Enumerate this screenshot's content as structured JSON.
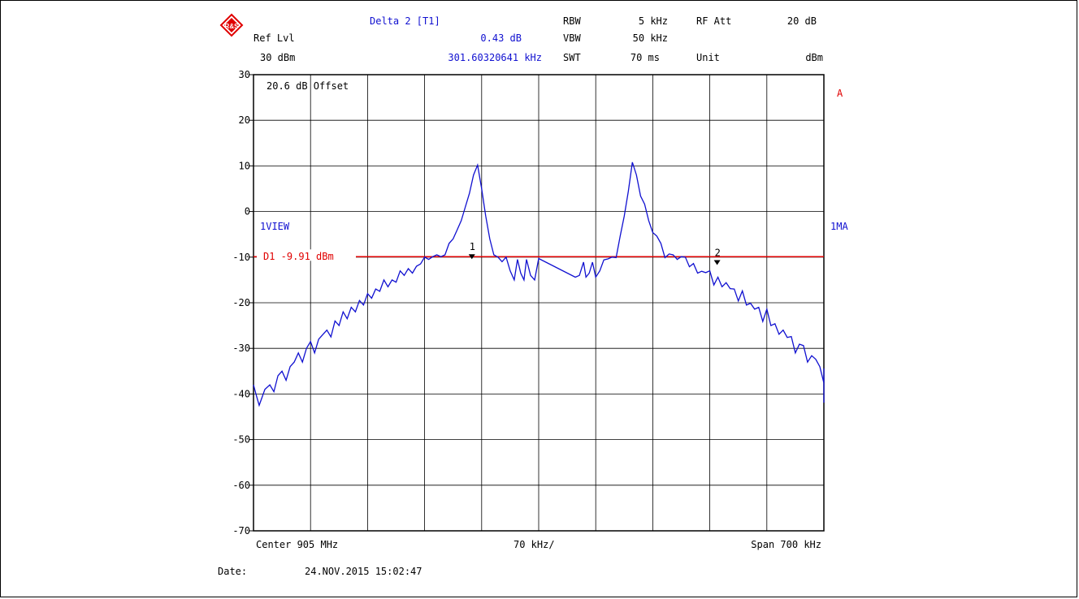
{
  "header": {
    "logo_text": "R&S",
    "ref_lvl_label": "Ref Lvl",
    "ref_lvl_value": "30 dBm",
    "marker_title": "Delta 2 [T1]",
    "marker_level": "0.43 dB",
    "marker_freq": "301.60320641 kHz",
    "rbw_label": "RBW",
    "rbw_value": "5 kHz",
    "vbw_label": "VBW",
    "vbw_value": "50 kHz",
    "swt_label": "SWT",
    "swt_value": "70 ms",
    "rf_att_label": "RF Att",
    "rf_att_value": "20 dB",
    "unit_label": "Unit",
    "unit_value": "dBm"
  },
  "plot_labels": {
    "offset": "20.6 dB Offset",
    "view": "1VIEW",
    "display_line": "D1  -9.91 dBm",
    "trace_flag": "A",
    "trace_mode": "1MA",
    "marker1": "1",
    "marker2": "2"
  },
  "footer": {
    "center": "Center 905 MHz",
    "per_div": "70 kHz/",
    "span": "Span 700 kHz",
    "date_label": "Date:",
    "date_value": "24.NOV.2015  15:02:47"
  },
  "colors": {
    "trace": "#1010d0",
    "display_line": "#e00000",
    "header_text": "#1010d0",
    "grid": "#000000"
  },
  "chart_data": {
    "type": "line",
    "title": "",
    "xlabel": "",
    "ylabel": "",
    "x_unit": "kHz offset from center",
    "xlim": [
      -350,
      350
    ],
    "ylim": [
      -70,
      30
    ],
    "yticks": [
      30,
      20,
      10,
      0,
      -10,
      -20,
      -30,
      -40,
      -50,
      -60,
      -70
    ],
    "grid": true,
    "display_line_dbm": -9.91,
    "markers": [
      {
        "label": "1",
        "x": -82,
        "y": -9.9
      },
      {
        "label": "2",
        "x": 219,
        "y": -11.2
      }
    ],
    "series": [
      {
        "x": [
          -350,
          -347,
          -343,
          -340,
          -336,
          -330,
          -325,
          -320,
          -315,
          -310,
          -305,
          -300,
          -295,
          -290,
          -285,
          -280,
          -275,
          -270,
          -265,
          -260,
          -255,
          -250,
          -245,
          -240,
          -235,
          -230,
          -225,
          -220,
          -215,
          -210,
          -205,
          -200,
          -195,
          -190,
          -185,
          -180,
          -175,
          -170,
          -165,
          -160,
          -155,
          -150,
          -145,
          -140,
          -135,
          -130,
          -125,
          -120,
          -115,
          -110,
          -105,
          -100,
          -95,
          -90,
          -85,
          -80,
          -75,
          -70,
          -65,
          -60,
          -55,
          -50,
          -45,
          -40,
          -35,
          -30,
          -26,
          -22,
          -18,
          -15,
          -10,
          -5,
          0,
          -30,
          -28,
          -25
        ],
        "values": [
          -38,
          -40,
          -42.5,
          -41,
          -39,
          -38,
          -39.5,
          -36,
          -35,
          -37,
          -34,
          -33,
          -31,
          -33,
          -30,
          -28.5,
          -31,
          -28,
          -27,
          -26,
          -27.5,
          -24,
          -25,
          -22,
          -23.5,
          -21,
          -22,
          -19.5,
          -20.5,
          -18,
          -19,
          -17,
          -17.5,
          -15,
          -16.5,
          -15,
          -15.5,
          -13,
          -14,
          -12.5,
          -13.5,
          -12,
          -11.5,
          -10,
          -10.5,
          -9.9,
          -9.5,
          -9.9,
          -9.5,
          -7,
          -6,
          -4,
          -2,
          1,
          4,
          8,
          10.2,
          5,
          -1,
          -6,
          -9.5,
          -10,
          -11,
          -10,
          -13,
          -15,
          -10.5,
          -13.5,
          -15,
          -10.5,
          -14,
          -15,
          -10.3,
          null,
          null,
          null
        ]
      }
    ]
  }
}
